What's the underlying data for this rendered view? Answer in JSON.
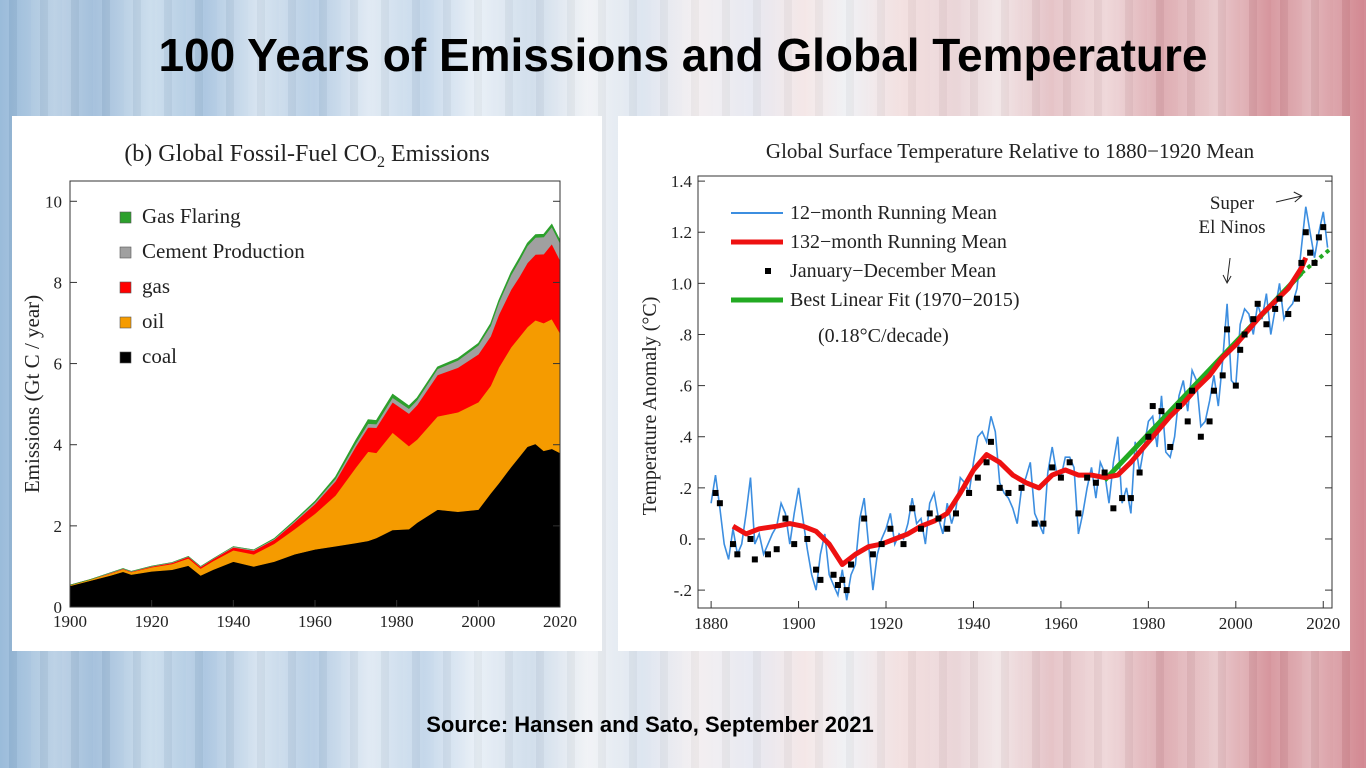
{
  "slide": {
    "title": "100 Years of Emissions and Global Temperature",
    "source": "Source: Hansen and Sato, September 2021"
  },
  "chart_data": [
    {
      "type": "area",
      "title_prefix": "(b)  Global Fossil-Fuel CO",
      "title_sub": "2",
      "title_suffix": " Emissions",
      "ylabel": "Emissions (Gt C / year)",
      "xlim": [
        1900,
        2020
      ],
      "ylim": [
        0,
        10.5
      ],
      "xticks": [
        1900,
        1920,
        1940,
        1960,
        1980,
        2000,
        2020
      ],
      "yticks": [
        0,
        2,
        4,
        6,
        8,
        10
      ],
      "stacked": true,
      "legend_position": "top-left",
      "x": [
        1900,
        1905,
        1910,
        1913,
        1915,
        1920,
        1925,
        1929,
        1932,
        1935,
        1940,
        1945,
        1950,
        1955,
        1960,
        1965,
        1970,
        1973,
        1975,
        1979,
        1983,
        1985,
        1990,
        1995,
        2000,
        2003,
        2005,
        2008,
        2010,
        2012,
        2014,
        2016,
        2018,
        2020
      ],
      "series": [
        {
          "name": "coal",
          "color": "#000000",
          "values": [
            0.52,
            0.65,
            0.78,
            0.87,
            0.8,
            0.88,
            0.92,
            1.02,
            0.78,
            0.92,
            1.12,
            1.0,
            1.12,
            1.3,
            1.42,
            1.5,
            1.58,
            1.63,
            1.7,
            1.9,
            1.92,
            2.08,
            2.4,
            2.35,
            2.4,
            2.8,
            3.05,
            3.45,
            3.7,
            3.95,
            4.02,
            3.85,
            3.9,
            3.8
          ]
        },
        {
          "name": "oil",
          "color": "#f59b00",
          "values": [
            0.02,
            0.03,
            0.05,
            0.06,
            0.06,
            0.1,
            0.14,
            0.18,
            0.17,
            0.21,
            0.28,
            0.3,
            0.44,
            0.62,
            0.88,
            1.25,
            1.86,
            2.2,
            2.1,
            2.4,
            2.05,
            2.05,
            2.3,
            2.45,
            2.65,
            2.65,
            2.85,
            2.95,
            2.95,
            2.95,
            3.05,
            3.15,
            3.2,
            2.95
          ]
        },
        {
          "name": "gas",
          "color": "#ff0000",
          "values": [
            0.0,
            0.0,
            0.01,
            0.01,
            0.01,
            0.02,
            0.03,
            0.04,
            0.04,
            0.05,
            0.07,
            0.09,
            0.1,
            0.17,
            0.24,
            0.35,
            0.52,
            0.6,
            0.62,
            0.75,
            0.8,
            0.85,
            1.02,
            1.1,
            1.18,
            1.22,
            1.3,
            1.42,
            1.48,
            1.58,
            1.62,
            1.7,
            1.85,
            1.8
          ]
        },
        {
          "name": "Cement Production",
          "color": "#a0a0a0",
          "values": [
            0.0,
            0.0,
            0.01,
            0.01,
            0.01,
            0.01,
            0.01,
            0.01,
            0.01,
            0.01,
            0.02,
            0.02,
            0.02,
            0.03,
            0.04,
            0.06,
            0.08,
            0.09,
            0.09,
            0.11,
            0.12,
            0.12,
            0.15,
            0.18,
            0.22,
            0.26,
            0.3,
            0.36,
            0.4,
            0.42,
            0.42,
            0.42,
            0.42,
            0.42
          ]
        },
        {
          "name": "Gas Flaring",
          "color": "#2ca02c",
          "values": [
            0.0,
            0.0,
            0.0,
            0.0,
            0.0,
            0.0,
            0.0,
            0.0,
            0.0,
            0.0,
            0.0,
            0.0,
            0.01,
            0.02,
            0.03,
            0.05,
            0.08,
            0.1,
            0.09,
            0.09,
            0.07,
            0.06,
            0.05,
            0.05,
            0.05,
            0.06,
            0.06,
            0.07,
            0.07,
            0.07,
            0.07,
            0.07,
            0.07,
            0.07
          ]
        }
      ]
    },
    {
      "type": "line",
      "title": "Global Surface Temperature Relative to 1880−1920 Mean",
      "ylabel": "Temperature Anomaly (°C)",
      "xlim": [
        1877,
        2022
      ],
      "ylim": [
        -0.27,
        1.42
      ],
      "xticks": [
        1880,
        1900,
        1920,
        1940,
        1960,
        1980,
        2000,
        2020
      ],
      "yticks": [
        -0.2,
        0.0,
        0.2,
        0.4,
        0.6,
        0.8,
        1.0,
        1.2,
        1.4
      ],
      "ytick_labels": [
        "-.2",
        "0.",
        ".2",
        ".4",
        ".6",
        ".8",
        "1.0",
        "1.2",
        "1.4"
      ],
      "legend_position": "top-left",
      "legend_note": "(0.18°C/decade)",
      "annotation": [
        "Super",
        "El Ninos"
      ],
      "series": [
        {
          "name": "12−month Running Mean",
          "color": "#3c8ee0",
          "style": "thin-line",
          "x": [
            1880,
            1881,
            1882,
            1883,
            1884,
            1885,
            1886,
            1887,
            1888,
            1889,
            1890,
            1891,
            1892,
            1893,
            1894,
            1895,
            1896,
            1897,
            1898,
            1899,
            1900,
            1901,
            1902,
            1903,
            1904,
            1905,
            1906,
            1907,
            1908,
            1909,
            1910,
            1911,
            1912,
            1913,
            1914,
            1915,
            1916,
            1917,
            1918,
            1919,
            1920,
            1921,
            1922,
            1923,
            1924,
            1925,
            1926,
            1927,
            1928,
            1929,
            1930,
            1931,
            1932,
            1933,
            1934,
            1935,
            1936,
            1937,
            1938,
            1939,
            1940,
            1941,
            1942,
            1943,
            1944,
            1945,
            1946,
            1947,
            1948,
            1949,
            1950,
            1951,
            1952,
            1953,
            1954,
            1955,
            1956,
            1957,
            1958,
            1959,
            1960,
            1961,
            1962,
            1963,
            1964,
            1965,
            1966,
            1967,
            1968,
            1969,
            1970,
            1971,
            1972,
            1973,
            1974,
            1975,
            1976,
            1977,
            1978,
            1979,
            1980,
            1981,
            1982,
            1983,
            1984,
            1985,
            1986,
            1987,
            1988,
            1989,
            1990,
            1991,
            1992,
            1993,
            1994,
            1995,
            1996,
            1997,
            1998,
            1999,
            2000,
            2001,
            2002,
            2003,
            2004,
            2005,
            2006,
            2007,
            2008,
            2009,
            2010,
            2011,
            2012,
            2013,
            2014,
            2015,
            2016,
            2017,
            2018,
            2019,
            2020,
            2021
          ],
          "values": [
            0.14,
            0.25,
            0.12,
            -0.02,
            -0.08,
            0.04,
            -0.06,
            -0.02,
            0.1,
            0.24,
            -0.02,
            0.02,
            -0.06,
            -0.02,
            0.02,
            0.05,
            0.14,
            0.1,
            -0.02,
            0.1,
            0.2,
            0.08,
            -0.04,
            -0.14,
            -0.2,
            -0.06,
            0.02,
            -0.14,
            -0.18,
            -0.22,
            -0.12,
            -0.24,
            -0.14,
            -0.1,
            0.08,
            0.16,
            -0.02,
            -0.2,
            -0.06,
            0.0,
            0.04,
            0.1,
            -0.02,
            0.02,
            0.0,
            0.06,
            0.16,
            0.06,
            0.08,
            -0.02,
            0.14,
            0.18,
            0.08,
            0.02,
            0.14,
            0.06,
            0.12,
            0.24,
            0.22,
            0.18,
            0.3,
            0.4,
            0.42,
            0.38,
            0.48,
            0.42,
            0.22,
            0.18,
            0.16,
            0.12,
            0.06,
            0.2,
            0.24,
            0.3,
            0.1,
            0.06,
            0.02,
            0.26,
            0.36,
            0.26,
            0.24,
            0.32,
            0.32,
            0.28,
            0.02,
            0.1,
            0.2,
            0.28,
            0.16,
            0.3,
            0.26,
            0.14,
            0.3,
            0.4,
            0.14,
            0.2,
            0.1,
            0.38,
            0.26,
            0.36,
            0.46,
            0.48,
            0.36,
            0.56,
            0.34,
            0.32,
            0.4,
            0.56,
            0.62,
            0.5,
            0.66,
            0.62,
            0.44,
            0.46,
            0.54,
            0.64,
            0.52,
            0.7,
            0.92,
            0.62,
            0.6,
            0.84,
            0.9,
            0.88,
            0.8,
            0.92,
            0.86,
            0.96,
            0.8,
            0.9,
            1.0,
            0.86,
            0.9,
            0.92,
            0.98,
            1.14,
            1.3,
            1.2,
            1.1,
            1.2,
            1.28,
            1.14
          ]
        },
        {
          "name": "132−month Running Mean",
          "color": "#ee1111",
          "style": "thick-line",
          "x": [
            1885,
            1888,
            1891,
            1895,
            1898,
            1901,
            1904,
            1907,
            1910,
            1913,
            1916,
            1919,
            1922,
            1925,
            1928,
            1931,
            1934,
            1937,
            1940,
            1943,
            1946,
            1949,
            1952,
            1955,
            1958,
            1961,
            1964,
            1967,
            1970,
            1973,
            1976,
            1979,
            1982,
            1985,
            1988,
            1991,
            1994,
            1997,
            2000,
            2003,
            2006,
            2009,
            2012,
            2015,
            2016
          ],
          "values": [
            0.05,
            0.02,
            0.04,
            0.05,
            0.06,
            0.05,
            0.03,
            -0.02,
            -0.1,
            -0.06,
            -0.03,
            -0.02,
            0.0,
            0.02,
            0.05,
            0.07,
            0.1,
            0.18,
            0.27,
            0.33,
            0.3,
            0.25,
            0.22,
            0.2,
            0.25,
            0.27,
            0.25,
            0.25,
            0.24,
            0.25,
            0.3,
            0.36,
            0.42,
            0.48,
            0.53,
            0.59,
            0.64,
            0.71,
            0.76,
            0.82,
            0.88,
            0.93,
            0.98,
            1.06,
            1.1
          ]
        },
        {
          "name": "January−December Mean",
          "color": "#000000",
          "style": "markers",
          "x": [
            1881,
            1882,
            1885,
            1886,
            1889,
            1890,
            1893,
            1895,
            1897,
            1899,
            1902,
            1904,
            1905,
            1908,
            1909,
            1910,
            1911,
            1912,
            1915,
            1917,
            1919,
            1921,
            1924,
            1926,
            1928,
            1930,
            1932,
            1934,
            1936,
            1939,
            1941,
            1943,
            1944,
            1946,
            1948,
            1951,
            1954,
            1956,
            1958,
            1960,
            1962,
            1964,
            1966,
            1968,
            1970,
            1972,
            1974,
            1976,
            1978,
            1980,
            1981,
            1983,
            1985,
            1987,
            1989,
            1990,
            1992,
            1994,
            1995,
            1997,
            1998,
            2000,
            2001,
            2002,
            2004,
            2005,
            2007,
            2009,
            2010,
            2012,
            2014,
            2015,
            2016,
            2017,
            2018,
            2019,
            2020
          ],
          "values": [
            0.18,
            0.14,
            -0.02,
            -0.06,
            0.0,
            -0.08,
            -0.06,
            -0.04,
            0.08,
            -0.02,
            0.0,
            -0.12,
            -0.16,
            -0.14,
            -0.18,
            -0.16,
            -0.2,
            -0.1,
            0.08,
            -0.06,
            -0.02,
            0.04,
            -0.02,
            0.12,
            0.04,
            0.1,
            0.08,
            0.04,
            0.1,
            0.18,
            0.24,
            0.3,
            0.38,
            0.2,
            0.18,
            0.2,
            0.06,
            0.06,
            0.28,
            0.24,
            0.3,
            0.1,
            0.24,
            0.22,
            0.26,
            0.12,
            0.16,
            0.16,
            0.26,
            0.4,
            0.52,
            0.5,
            0.36,
            0.52,
            0.46,
            0.58,
            0.4,
            0.46,
            0.58,
            0.64,
            0.82,
            0.6,
            0.74,
            0.8,
            0.86,
            0.92,
            0.84,
            0.9,
            0.94,
            0.88,
            0.94,
            1.08,
            1.2,
            1.12,
            1.08,
            1.18,
            1.22
          ]
        },
        {
          "name": "Best Linear Fit (1970−2015)",
          "color": "#22aa22",
          "style": "fit-line",
          "x": [
            1970,
            2015
          ],
          "values": [
            0.23,
            1.04
          ],
          "extrapolate_to": [
            2022,
            1.14
          ]
        }
      ]
    }
  ]
}
